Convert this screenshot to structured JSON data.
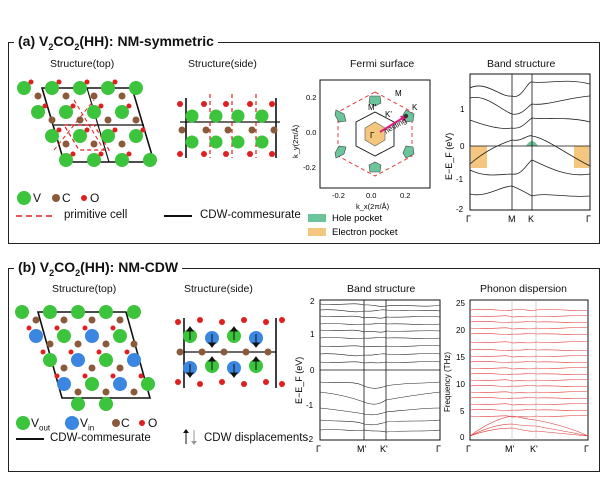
{
  "panel_a": {
    "title_prefix": "(a) V",
    "title_s1": "2",
    "title_mid": "CO",
    "title_s2": "2",
    "title_suffix": "(HH): NM-symmetric",
    "structure_top": "Structure(top)",
    "structure_side": "Structure(side)",
    "fermi_title": "Fermi surface",
    "band_title": "Band structure",
    "legend_v": "V",
    "legend_c": "C",
    "legend_o": "O",
    "legend_primitive": "primitive cell",
    "legend_cdw": "CDW-commesurate",
    "hole_pocket": "Hole pocket",
    "electron_pocket": "Electron pocket",
    "fermi_labels": {
      "M": "M",
      "Mp": "M'",
      "Kp": "K'",
      "K": "K",
      "Gamma": "Γ",
      "nesting": "nesting"
    },
    "fermi_yticks": [
      "0.2",
      "0.0",
      "-0.2"
    ],
    "fermi_xticks": [
      "-0.2",
      "0.0",
      "0.2"
    ],
    "fermi_ylabel": "k_y(2π/Å)",
    "fermi_xlabel": "k_x(2π/Å)",
    "band_ylabel": "E−E_F (eV)",
    "band_yticks": [
      "1",
      "0",
      "-1",
      "-2"
    ],
    "band_xticks": [
      "Γ",
      "M",
      "K",
      "Γ"
    ]
  },
  "panel_b": {
    "title_prefix": "(b) V",
    "title_s1": "2",
    "title_mid": "CO",
    "title_s2": "2",
    "title_suffix": "(HH): NM-CDW",
    "structure_top": "Structure(top)",
    "structure_side": "Structure(side)",
    "band_title": "Band structure",
    "phonon_title": "Phonon dispersion",
    "legend_vout": "V",
    "legend_vout_sub": "out",
    "legend_vin": "V",
    "legend_vin_sub": "in",
    "legend_c": "C",
    "legend_o": "O",
    "legend_cdw": "CDW-commesurate",
    "legend_disp": "CDW displacements",
    "band_ylabel": "E−E_F (eV)",
    "band_yticks": [
      "2",
      "1",
      "0",
      "-1",
      "-2"
    ],
    "band_xticks": [
      "Γ",
      "M'",
      "K'",
      "Γ"
    ],
    "phonon_ylabel": "Frequency (THz)",
    "phonon_yticks": [
      "25",
      "20",
      "15",
      "10",
      "5",
      "0"
    ],
    "phonon_xticks": [
      "Γ",
      "M'",
      "K'",
      "Γ"
    ]
  },
  "colors": {
    "vanadium": "#3cc43c",
    "vanadium_in": "#3a86e0",
    "carbon": "#8a5a3a",
    "oxygen": "#e02020",
    "hole": "#6cc59a",
    "electron": "#f5c77e",
    "phonon": "#e0393a",
    "nesting": "#e0197f"
  }
}
